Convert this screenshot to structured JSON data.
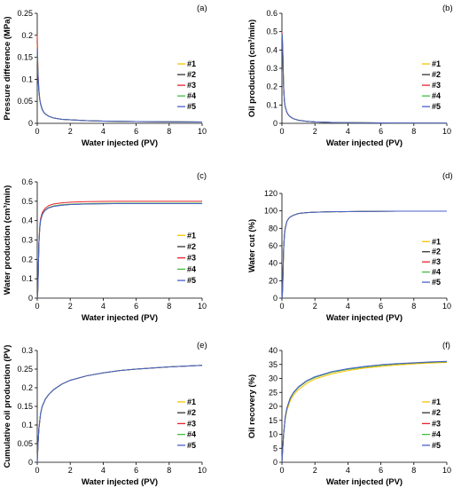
{
  "series_styles": [
    {
      "name": "#1",
      "color": "#f5c400"
    },
    {
      "name": "#2",
      "color": "#333333"
    },
    {
      "name": "#3",
      "color": "#e8232a"
    },
    {
      "name": "#4",
      "color": "#3fbf3f"
    },
    {
      "name": "#5",
      "color": "#4a5fcf"
    }
  ],
  "chart_data": [
    {
      "type": "line",
      "panel_label": "(a)",
      "xlabel": "Water injected (PV)",
      "ylabel": "Pressure difference (MPa)",
      "xlim": [
        0,
        10
      ],
      "ylim": [
        0,
        0.25
      ],
      "xticks": [
        0,
        2,
        4,
        6,
        8,
        10
      ],
      "yticks": [
        0,
        0.05,
        0.1,
        0.15,
        0.2,
        0.25
      ],
      "ytick_labels": [
        "0",
        "0.05",
        "0.1",
        "0.15",
        "0.2",
        "0.25"
      ],
      "legend": "center-right",
      "x": [
        0,
        0.02,
        0.05,
        0.1,
        0.15,
        0.2,
        0.3,
        0.4,
        0.5,
        0.7,
        1,
        1.5,
        2,
        3,
        4,
        5,
        6,
        7,
        8,
        9,
        10
      ],
      "series": [
        {
          "name": "#1",
          "values": [
            0.18,
            0.15,
            0.11,
            0.075,
            0.055,
            0.045,
            0.032,
            0.025,
            0.021,
            0.016,
            0.012,
            0.009,
            0.008,
            0.006,
            0.005,
            0.0045,
            0.004,
            0.0037,
            0.0035,
            0.0033,
            0.0031
          ]
        },
        {
          "name": "#2",
          "values": [
            0.15,
            0.13,
            0.1,
            0.072,
            0.054,
            0.044,
            0.031,
            0.025,
            0.021,
            0.016,
            0.012,
            0.009,
            0.008,
            0.006,
            0.005,
            0.0045,
            0.004,
            0.0037,
            0.0035,
            0.0033,
            0.0031
          ]
        },
        {
          "name": "#3",
          "values": [
            0.2,
            0.16,
            0.115,
            0.078,
            0.056,
            0.045,
            0.032,
            0.025,
            0.021,
            0.016,
            0.012,
            0.009,
            0.008,
            0.006,
            0.005,
            0.0045,
            0.004,
            0.0037,
            0.0035,
            0.0033,
            0.0031
          ]
        },
        {
          "name": "#4",
          "values": [
            0.16,
            0.14,
            0.105,
            0.074,
            0.055,
            0.045,
            0.032,
            0.025,
            0.021,
            0.016,
            0.012,
            0.009,
            0.008,
            0.006,
            0.005,
            0.0045,
            0.004,
            0.0037,
            0.0035,
            0.0033,
            0.0031
          ]
        },
        {
          "name": "#5",
          "values": [
            0.17,
            0.145,
            0.108,
            0.075,
            0.055,
            0.045,
            0.032,
            0.025,
            0.021,
            0.016,
            0.012,
            0.009,
            0.008,
            0.006,
            0.005,
            0.0045,
            0.004,
            0.0037,
            0.0035,
            0.0033,
            0.0031
          ]
        }
      ]
    },
    {
      "type": "line",
      "panel_label": "(b)",
      "xlabel": "Water injected (PV)",
      "ylabel": "Oil production (cm³/min)",
      "xlim": [
        0,
        10
      ],
      "ylim": [
        0,
        0.6
      ],
      "xticks": [
        0,
        2,
        4,
        6,
        8,
        10
      ],
      "yticks": [
        0,
        0.1,
        0.2,
        0.3,
        0.4,
        0.5,
        0.6
      ],
      "ytick_labels": [
        "0",
        "0.1",
        "0.2",
        "0.3",
        "0.4",
        "0.5",
        "0.6"
      ],
      "legend": "center-right",
      "x": [
        0,
        0.02,
        0.05,
        0.1,
        0.15,
        0.2,
        0.3,
        0.4,
        0.5,
        0.7,
        1,
        1.5,
        2,
        3,
        4,
        5,
        6,
        7,
        8,
        9,
        10
      ],
      "series": [
        {
          "name": "#1",
          "values": [
            0.49,
            0.48,
            0.4,
            0.2,
            0.12,
            0.09,
            0.06,
            0.045,
            0.036,
            0.025,
            0.017,
            0.011,
            0.008,
            0.005,
            0.0035,
            0.0028,
            0.0023,
            0.002,
            0.0017,
            0.0015,
            0.0013
          ]
        },
        {
          "name": "#2",
          "values": [
            0.49,
            0.47,
            0.39,
            0.2,
            0.12,
            0.09,
            0.06,
            0.045,
            0.036,
            0.025,
            0.017,
            0.011,
            0.008,
            0.005,
            0.0035,
            0.0028,
            0.0023,
            0.002,
            0.0017,
            0.0015,
            0.0013
          ]
        },
        {
          "name": "#3",
          "values": [
            0.5,
            0.48,
            0.4,
            0.21,
            0.12,
            0.09,
            0.06,
            0.045,
            0.036,
            0.025,
            0.017,
            0.011,
            0.008,
            0.005,
            0.0035,
            0.0028,
            0.0023,
            0.002,
            0.0017,
            0.0015,
            0.0013
          ]
        },
        {
          "name": "#4",
          "values": [
            0.49,
            0.48,
            0.41,
            0.2,
            0.12,
            0.09,
            0.06,
            0.045,
            0.036,
            0.025,
            0.017,
            0.011,
            0.008,
            0.005,
            0.0035,
            0.0028,
            0.0023,
            0.002,
            0.0017,
            0.0015,
            0.0013
          ]
        },
        {
          "name": "#5",
          "values": [
            0.49,
            0.47,
            0.4,
            0.2,
            0.12,
            0.09,
            0.06,
            0.045,
            0.036,
            0.025,
            0.017,
            0.011,
            0.008,
            0.005,
            0.0035,
            0.0028,
            0.0023,
            0.002,
            0.0017,
            0.0015,
            0.0013
          ]
        }
      ]
    },
    {
      "type": "line",
      "panel_label": "(c)",
      "xlabel": "Water injected (PV)",
      "ylabel": "Water production (cm³/min)",
      "xlim": [
        0,
        10
      ],
      "ylim": [
        0,
        0.6
      ],
      "xticks": [
        0,
        2,
        4,
        6,
        8,
        10
      ],
      "yticks": [
        0,
        0.1,
        0.2,
        0.3,
        0.4,
        0.5,
        0.6
      ],
      "ytick_labels": [
        "0",
        "0.1",
        "0.2",
        "0.3",
        "0.4",
        "0.5",
        "0.6"
      ],
      "legend": "center-right",
      "x": [
        0,
        0.02,
        0.05,
        0.1,
        0.15,
        0.2,
        0.3,
        0.4,
        0.5,
        0.7,
        1,
        1.5,
        2,
        3,
        4,
        5,
        6,
        7,
        8,
        9,
        10
      ],
      "series": [
        {
          "name": "#1",
          "values": [
            0,
            0.01,
            0.08,
            0.28,
            0.36,
            0.4,
            0.43,
            0.445,
            0.455,
            0.468,
            0.476,
            0.482,
            0.485,
            0.488,
            0.489,
            0.49,
            0.49,
            0.49,
            0.49,
            0.49,
            0.49
          ]
        },
        {
          "name": "#2",
          "values": [
            0,
            0.01,
            0.08,
            0.28,
            0.36,
            0.4,
            0.43,
            0.445,
            0.455,
            0.466,
            0.474,
            0.48,
            0.483,
            0.486,
            0.487,
            0.488,
            0.488,
            0.488,
            0.488,
            0.488,
            0.488
          ]
        },
        {
          "name": "#3",
          "values": [
            0,
            0.01,
            0.09,
            0.29,
            0.37,
            0.41,
            0.44,
            0.455,
            0.465,
            0.478,
            0.486,
            0.492,
            0.495,
            0.498,
            0.499,
            0.5,
            0.5,
            0.5,
            0.5,
            0.5,
            0.5
          ]
        },
        {
          "name": "#4",
          "values": [
            0,
            0.01,
            0.08,
            0.28,
            0.36,
            0.4,
            0.43,
            0.446,
            0.456,
            0.468,
            0.476,
            0.482,
            0.485,
            0.488,
            0.489,
            0.49,
            0.49,
            0.49,
            0.49,
            0.49,
            0.49
          ]
        },
        {
          "name": "#5",
          "values": [
            0,
            0.01,
            0.08,
            0.28,
            0.36,
            0.4,
            0.43,
            0.445,
            0.455,
            0.466,
            0.474,
            0.48,
            0.483,
            0.486,
            0.487,
            0.488,
            0.488,
            0.488,
            0.488,
            0.488,
            0.488
          ]
        }
      ]
    },
    {
      "type": "line",
      "panel_label": "(d)",
      "xlabel": "Water injected (PV)",
      "ylabel": "Water cut (%)",
      "xlim": [
        0,
        10
      ],
      "ylim": [
        0,
        120
      ],
      "xticks": [
        0,
        2,
        4,
        6,
        8,
        10
      ],
      "yticks": [
        0,
        20,
        40,
        60,
        80,
        100,
        120
      ],
      "ytick_labels": [
        "0",
        "20",
        "40",
        "60",
        "80",
        "100",
        "120"
      ],
      "legend": "center-right",
      "x": [
        0,
        0.02,
        0.05,
        0.1,
        0.15,
        0.2,
        0.3,
        0.4,
        0.5,
        0.7,
        1,
        1.5,
        2,
        3,
        4,
        5,
        6,
        7,
        8,
        9,
        10
      ],
      "series": [
        {
          "name": "#1",
          "values": [
            0,
            2,
            15,
            55,
            72,
            80,
            88,
            91,
            93,
            95,
            97,
            98,
            98.5,
            99,
            99.2,
            99.4,
            99.5,
            99.6,
            99.7,
            99.7,
            99.7
          ]
        },
        {
          "name": "#2",
          "values": [
            0,
            2,
            15,
            55,
            72,
            80,
            88,
            91,
            93,
            95,
            97,
            98,
            98.5,
            99,
            99.2,
            99.4,
            99.5,
            99.6,
            99.7,
            99.7,
            99.7
          ]
        },
        {
          "name": "#3",
          "values": [
            0,
            2,
            16,
            56,
            73,
            81,
            88,
            91,
            93,
            95,
            97,
            98,
            98.5,
            99,
            99.2,
            99.4,
            99.5,
            99.6,
            99.7,
            99.7,
            99.7
          ]
        },
        {
          "name": "#4",
          "values": [
            0,
            2,
            15,
            55,
            72,
            80,
            88,
            91,
            93,
            95,
            97,
            98,
            98.5,
            99,
            99.2,
            99.4,
            99.5,
            99.6,
            99.7,
            99.7,
            99.7
          ]
        },
        {
          "name": "#5",
          "values": [
            0,
            2,
            15,
            55,
            72,
            80,
            88,
            91,
            93,
            95,
            97,
            98,
            98.5,
            99,
            99.2,
            99.4,
            99.5,
            99.6,
            99.7,
            99.7,
            99.7
          ]
        }
      ]
    },
    {
      "type": "line",
      "panel_label": "(e)",
      "xlabel": "Water injected (PV)",
      "ylabel": "Cumulative oil production (PV)",
      "xlim": [
        0,
        10
      ],
      "ylim": [
        0,
        0.3
      ],
      "xticks": [
        0,
        2,
        4,
        6,
        8,
        10
      ],
      "yticks": [
        0,
        0.05,
        0.1,
        0.15,
        0.2,
        0.25,
        0.3
      ],
      "ytick_labels": [
        "0",
        "0.05",
        "0.1",
        "0.15",
        "0.2",
        "0.25",
        "0.3"
      ],
      "legend": "center-right",
      "x": [
        0,
        0.05,
        0.1,
        0.2,
        0.3,
        0.5,
        0.7,
        1,
        1.5,
        2,
        3,
        4,
        5,
        6,
        7,
        8,
        9,
        10
      ],
      "series": [
        {
          "name": "#1",
          "values": [
            0,
            0.05,
            0.09,
            0.13,
            0.15,
            0.17,
            0.182,
            0.195,
            0.21,
            0.22,
            0.232,
            0.24,
            0.246,
            0.25,
            0.253,
            0.256,
            0.258,
            0.26
          ]
        },
        {
          "name": "#2",
          "values": [
            0,
            0.05,
            0.09,
            0.13,
            0.15,
            0.17,
            0.182,
            0.195,
            0.21,
            0.22,
            0.232,
            0.24,
            0.246,
            0.25,
            0.253,
            0.256,
            0.258,
            0.26
          ]
        },
        {
          "name": "#3",
          "values": [
            0,
            0.05,
            0.09,
            0.13,
            0.15,
            0.17,
            0.182,
            0.195,
            0.21,
            0.22,
            0.232,
            0.24,
            0.246,
            0.25,
            0.253,
            0.256,
            0.258,
            0.26
          ]
        },
        {
          "name": "#4",
          "values": [
            0,
            0.05,
            0.09,
            0.13,
            0.15,
            0.17,
            0.182,
            0.195,
            0.21,
            0.22,
            0.232,
            0.24,
            0.246,
            0.25,
            0.253,
            0.256,
            0.258,
            0.26
          ]
        },
        {
          "name": "#5",
          "values": [
            0,
            0.05,
            0.09,
            0.13,
            0.15,
            0.17,
            0.182,
            0.195,
            0.21,
            0.22,
            0.232,
            0.24,
            0.246,
            0.25,
            0.253,
            0.256,
            0.258,
            0.26
          ]
        }
      ]
    },
    {
      "type": "line",
      "panel_label": "(f)",
      "xlabel": "Water injected (PV)",
      "ylabel": "Oil recovery (%)",
      "xlim": [
        0,
        10
      ],
      "ylim": [
        0,
        40
      ],
      "xticks": [
        0,
        2,
        4,
        6,
        8,
        10
      ],
      "yticks": [
        0,
        5,
        10,
        15,
        20,
        25,
        30,
        35,
        40
      ],
      "ytick_labels": [
        "0",
        "5",
        "10",
        "15",
        "20",
        "25",
        "30",
        "35",
        "40"
      ],
      "legend": "center-right",
      "x": [
        0,
        0.05,
        0.1,
        0.2,
        0.3,
        0.5,
        0.7,
        1,
        1.5,
        2,
        3,
        4,
        5,
        6,
        7,
        8,
        9,
        10
      ],
      "series": [
        {
          "name": "#1",
          "values": [
            0,
            5,
            10,
            15.5,
            18.5,
            22,
            24,
            26,
            28.2,
            29.8,
            31.6,
            32.8,
            33.7,
            34.3,
            34.8,
            35.2,
            35.5,
            35.7
          ]
        },
        {
          "name": "#2",
          "values": [
            0,
            5,
            10,
            16,
            19.2,
            22.8,
            24.8,
            26.8,
            29,
            30.4,
            32.2,
            33.3,
            34.1,
            34.7,
            35.2,
            35.5,
            35.8,
            36
          ]
        },
        {
          "name": "#3",
          "values": [
            0,
            5,
            10,
            16,
            19.2,
            22.8,
            24.8,
            26.8,
            29,
            30.4,
            32.2,
            33.3,
            34.1,
            34.7,
            35.2,
            35.5,
            35.8,
            36
          ]
        },
        {
          "name": "#4",
          "values": [
            0,
            5,
            10,
            16,
            19.2,
            22.8,
            24.8,
            26.8,
            29,
            30.4,
            32.2,
            33.3,
            34.1,
            34.7,
            35.2,
            35.5,
            35.8,
            36
          ]
        },
        {
          "name": "#5",
          "values": [
            0,
            5,
            10,
            16.2,
            19.4,
            23,
            25,
            27,
            29.2,
            30.6,
            32.4,
            33.5,
            34.3,
            34.9,
            35.3,
            35.6,
            35.9,
            36.1
          ]
        }
      ]
    }
  ]
}
